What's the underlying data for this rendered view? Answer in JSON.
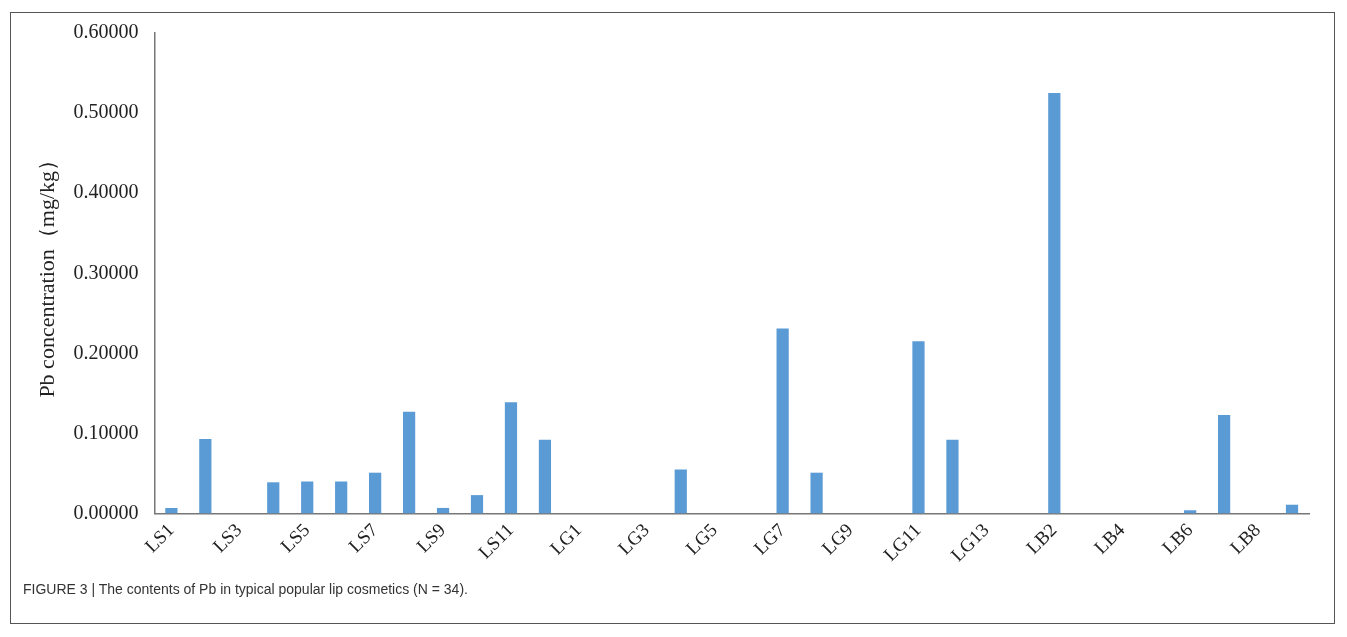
{
  "chart_data": {
    "type": "bar",
    "ylabel": "Pb concentration（mg/kg）",
    "categories": [
      "LS1",
      null,
      "LS3",
      null,
      "LS5",
      null,
      "LS7",
      null,
      "LS9",
      null,
      "LS11",
      null,
      "LG1",
      null,
      "LG3",
      null,
      "LG5",
      null,
      "LG7",
      null,
      "LG9",
      null,
      "LG11",
      null,
      "LG13",
      null,
      "LB2",
      null,
      "LB4",
      null,
      "LB6",
      null,
      "LB8",
      null
    ],
    "values": [
      0.007,
      0.093,
      0,
      0.039,
      0.04,
      0.04,
      0.051,
      0.127,
      0.007,
      0.023,
      0.139,
      0.092,
      0,
      0,
      0,
      0.055,
      0,
      0,
      0.231,
      0.051,
      0,
      0,
      0.215,
      0.092,
      0,
      0,
      0.525,
      0,
      0,
      0,
      0.004,
      0.123,
      0,
      0.011
    ],
    "color": "#5b9bd5",
    "ylim": [
      0,
      0.6
    ],
    "yticks": [
      {
        "value": 0,
        "label": "0.00000"
      },
      {
        "value": 0.1,
        "label": "0.10000"
      },
      {
        "value": 0.2,
        "label": "0.20000"
      },
      {
        "value": 0.3,
        "label": "0.30000"
      },
      {
        "value": 0.4,
        "label": "0.40000"
      },
      {
        "value": 0.5,
        "label": "0.50000"
      },
      {
        "value": 0.6,
        "label": "0.60000"
      }
    ],
    "grid": false,
    "legend": false,
    "annotations": [
      "FIGURE 3 | The contents of Pb in typical popular lip cosmetics (N = 34)."
    ]
  }
}
